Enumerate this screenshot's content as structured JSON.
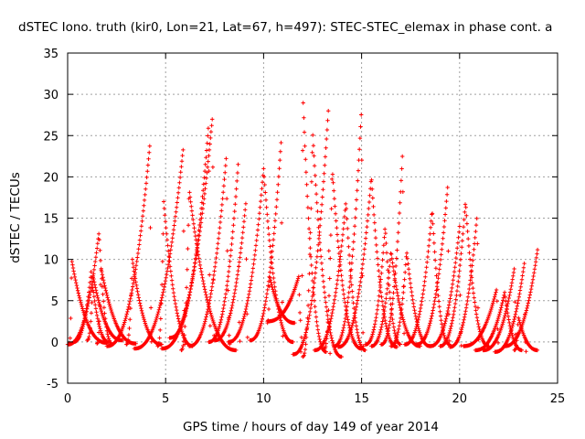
{
  "chart_data": {
    "type": "scatter",
    "title": "dSTEC Iono. truth (kir0, Lon=21, Lat=67, h=497): STEC-STEC_elemax in phase cont. a",
    "xlabel": "GPS time / hours of day 149 of year 2014",
    "ylabel": "dSTEC  / TECUs",
    "xlim": [
      0,
      25
    ],
    "ylim": [
      -5,
      35
    ],
    "xticks": [
      0,
      5,
      10,
      15,
      20,
      25
    ],
    "xtick_labels": [
      "0",
      "5",
      "10",
      "15",
      "20",
      "25"
    ],
    "yticks": [
      -5,
      0,
      5,
      10,
      15,
      20,
      25,
      30,
      35
    ],
    "ytick_labels": [
      "-5",
      "0",
      "5",
      "10",
      "15",
      "20",
      "25",
      "30",
      "35"
    ],
    "grid": true,
    "legend": "none",
    "marker": "plus",
    "color": "#ff0000",
    "arcs": [
      {
        "start": 0.0,
        "peak": 1.6,
        "end": 2.3,
        "min": -0.3,
        "max": 13.3
      },
      {
        "start": 0.1,
        "peak": 0.2,
        "end": 2.0,
        "min": -0.1,
        "max": 10.0
      },
      {
        "start": 0.3,
        "peak": 1.2,
        "end": 2.1,
        "min": 0.0,
        "max": 8.5
      },
      {
        "start": 1.5,
        "peak": 1.7,
        "end": 3.5,
        "min": -0.2,
        "max": 9.0
      },
      {
        "start": 1.0,
        "peak": 1.3,
        "end": 2.8,
        "min": 0.2,
        "max": 8.0
      },
      {
        "start": 2.0,
        "peak": 4.2,
        "end": 4.3,
        "min": -0.5,
        "max": 24.0
      },
      {
        "start": 3.0,
        "peak": 3.3,
        "end": 4.8,
        "min": -0.3,
        "max": 10.0
      },
      {
        "start": 3.4,
        "peak": 5.9,
        "end": 6.0,
        "min": -0.8,
        "max": 23.5
      },
      {
        "start": 4.6,
        "peak": 4.9,
        "end": 6.4,
        "min": -0.5,
        "max": 17.0
      },
      {
        "start": 4.8,
        "peak": 7.4,
        "end": 7.5,
        "min": -0.8,
        "max": 27.5
      },
      {
        "start": 5.2,
        "peak": 7.2,
        "end": 7.3,
        "min": 0.5,
        "max": 26.5
      },
      {
        "start": 5.8,
        "peak": 6.2,
        "end": 8.6,
        "min": -1.0,
        "max": 18.5
      },
      {
        "start": 6.2,
        "peak": 8.1,
        "end": 8.3,
        "min": -0.5,
        "max": 22.5
      },
      {
        "start": 7.2,
        "peak": 8.7,
        "end": 8.8,
        "min": 0.0,
        "max": 21.5
      },
      {
        "start": 7.5,
        "peak": 9.1,
        "end": 9.2,
        "min": 0.2,
        "max": 17.0
      },
      {
        "start": 8.2,
        "peak": 10.0,
        "end": 11.5,
        "min": 0.0,
        "max": 21.0
      },
      {
        "start": 9.3,
        "peak": 10.9,
        "end": 11.0,
        "min": 0.2,
        "max": 24.5
      },
      {
        "start": 10.2,
        "peak": 10.3,
        "end": 11.6,
        "min": 2.3,
        "max": 8.0
      },
      {
        "start": 10.2,
        "peak": 11.8,
        "end": 11.9,
        "min": 2.5,
        "max": 8.0
      },
      {
        "start": 11.9,
        "peak": 12.0,
        "end": 13.2,
        "min": -1.2,
        "max": 30.2
      },
      {
        "start": 12.0,
        "peak": 12.5,
        "end": 14.0,
        "min": -1.8,
        "max": 25.5
      },
      {
        "start": 11.5,
        "peak": 13.3,
        "end": 13.4,
        "min": -1.5,
        "max": 28.0
      },
      {
        "start": 12.6,
        "peak": 14.2,
        "end": 15.2,
        "min": -1.0,
        "max": 17.0
      },
      {
        "start": 13.1,
        "peak": 13.5,
        "end": 15.0,
        "min": -0.8,
        "max": 21.0
      },
      {
        "start": 13.6,
        "peak": 15.0,
        "end": 15.1,
        "min": -0.5,
        "max": 28.5
      },
      {
        "start": 13.8,
        "peak": 15.5,
        "end": 16.8,
        "min": -0.6,
        "max": 20.0
      },
      {
        "start": 15.2,
        "peak": 16.2,
        "end": 17.0,
        "min": -0.3,
        "max": 14.0
      },
      {
        "start": 15.5,
        "peak": 16.5,
        "end": 18.0,
        "min": -0.5,
        "max": 11.0
      },
      {
        "start": 16.0,
        "peak": 17.1,
        "end": 17.2,
        "min": -0.3,
        "max": 23.5
      },
      {
        "start": 16.5,
        "peak": 17.3,
        "end": 18.5,
        "min": -0.5,
        "max": 11.0
      },
      {
        "start": 17.2,
        "peak": 18.6,
        "end": 19.5,
        "min": -0.3,
        "max": 16.0
      },
      {
        "start": 17.8,
        "peak": 19.4,
        "end": 19.5,
        "min": -0.3,
        "max": 19.0
      },
      {
        "start": 18.5,
        "peak": 20.0,
        "end": 20.1,
        "min": -0.5,
        "max": 14.0
      },
      {
        "start": 19.0,
        "peak": 20.3,
        "end": 21.5,
        "min": -0.5,
        "max": 17.0
      },
      {
        "start": 19.5,
        "peak": 20.9,
        "end": 21.0,
        "min": -0.6,
        "max": 15.5
      },
      {
        "start": 20.2,
        "peak": 21.9,
        "end": 22.0,
        "min": -0.5,
        "max": 6.5
      },
      {
        "start": 20.8,
        "peak": 22.3,
        "end": 23.2,
        "min": -1.0,
        "max": 6.0
      },
      {
        "start": 21.2,
        "peak": 22.8,
        "end": 22.9,
        "min": -1.0,
        "max": 9.0
      },
      {
        "start": 21.8,
        "peak": 23.3,
        "end": 23.4,
        "min": -1.2,
        "max": 9.5
      },
      {
        "start": 22.3,
        "peak": 24.0,
        "end": 24.0,
        "min": -0.5,
        "max": 11.5
      },
      {
        "start": 22.8,
        "peak": 23.0,
        "end": 24.0,
        "min": -1.0,
        "max": 3.0
      }
    ]
  }
}
